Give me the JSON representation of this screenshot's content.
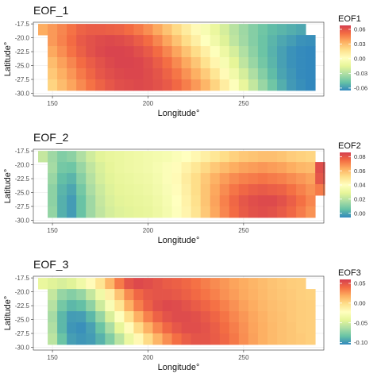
{
  "chart_data": [
    {
      "type": "heatmap",
      "title": "EOF_1",
      "xlabel": "Longitude°",
      "ylabel": "Latitude°",
      "xlim": [
        140,
        292
      ],
      "ylim": [
        -30.5,
        -17.2
      ],
      "x_ticks": [
        150,
        200,
        250
      ],
      "y_ticks": [
        -17.5,
        -20.0,
        -22.5,
        -25.0,
        -27.5,
        -30.0
      ],
      "grid": true,
      "legend": {
        "title": "EOF1",
        "position": "right",
        "range": [
          -0.065,
          0.068
        ],
        "ticks": [
          0.06,
          0.03,
          0.0,
          -0.03,
          -0.06
        ],
        "tick_labels": [
          "0.06",
          "0.03",
          "0.00",
          "-0.03",
          "-0.06"
        ],
        "colors": [
          "#d53e4f",
          "#f46d43",
          "#fdae61",
          "#fee08b",
          "#ffffbf",
          "#e6f598",
          "#abdda4",
          "#66c2a5",
          "#3288bd"
        ]
      },
      "grid_x": [
        145,
        150,
        155,
        160,
        165,
        170,
        175,
        180,
        185,
        190,
        195,
        200,
        205,
        210,
        215,
        220,
        225,
        230,
        235,
        240,
        245,
        250,
        255,
        260,
        265,
        270,
        275,
        280,
        285,
        290
      ],
      "grid_y": [
        -18.5,
        -20.5,
        -22.5,
        -24.5,
        -26.5,
        -28.5
      ],
      "rows": [
        [
          0.035,
          0.04,
          0.045,
          0.05,
          0.055,
          0.057,
          0.057,
          0.056,
          0.055,
          0.052,
          0.048,
          0.043,
          0.036,
          0.028,
          0.02,
          0.012,
          0.004,
          -0.004,
          -0.012,
          -0.02,
          -0.028,
          -0.035,
          -0.041,
          -0.046,
          -0.05,
          -0.052,
          -0.054,
          -0.056,
          null,
          null
        ],
        [
          null,
          0.04,
          0.046,
          0.052,
          0.058,
          0.061,
          0.063,
          0.064,
          0.063,
          0.061,
          0.057,
          0.052,
          0.045,
          0.037,
          0.028,
          0.019,
          0.01,
          0.001,
          -0.008,
          -0.017,
          -0.026,
          -0.034,
          -0.041,
          -0.047,
          -0.052,
          -0.056,
          -0.059,
          -0.062,
          -0.063,
          null
        ],
        [
          null,
          0.036,
          0.043,
          0.05,
          0.056,
          0.061,
          0.064,
          0.066,
          0.066,
          0.065,
          0.062,
          0.058,
          0.052,
          0.045,
          0.037,
          0.028,
          0.019,
          0.01,
          0.0,
          -0.01,
          -0.02,
          -0.03,
          -0.039,
          -0.047,
          -0.053,
          -0.058,
          -0.062,
          -0.064,
          -0.065,
          null
        ],
        [
          null,
          0.03,
          0.038,
          0.045,
          0.052,
          0.057,
          0.061,
          0.064,
          0.066,
          0.066,
          0.065,
          0.062,
          0.057,
          0.051,
          0.044,
          0.036,
          0.027,
          0.017,
          0.007,
          -0.004,
          -0.015,
          -0.026,
          -0.036,
          -0.045,
          -0.052,
          -0.058,
          -0.062,
          -0.064,
          -0.065,
          null
        ],
        [
          null,
          0.026,
          0.034,
          0.041,
          0.048,
          0.054,
          0.059,
          0.062,
          0.064,
          0.065,
          0.065,
          0.063,
          0.06,
          0.055,
          0.049,
          0.042,
          0.034,
          0.025,
          0.015,
          0.004,
          -0.008,
          -0.02,
          -0.031,
          -0.041,
          -0.05,
          -0.057,
          -0.061,
          -0.064,
          -0.065,
          null
        ],
        [
          null,
          0.022,
          0.03,
          0.037,
          0.044,
          0.05,
          0.055,
          0.059,
          0.062,
          0.063,
          0.064,
          0.063,
          0.061,
          0.058,
          0.053,
          0.047,
          0.04,
          0.032,
          0.022,
          0.011,
          0.0,
          -0.013,
          -0.025,
          -0.036,
          -0.046,
          -0.054,
          -0.06,
          -0.063,
          -0.065,
          null
        ]
      ]
    },
    {
      "type": "heatmap",
      "title": "EOF_2",
      "xlabel": "Longitude°",
      "ylabel": "Latitude°",
      "xlim": [
        140,
        292
      ],
      "ylim": [
        -30.5,
        -17.2
      ],
      "x_ticks": [
        150,
        200,
        250
      ],
      "y_ticks": [
        -17.5,
        -20.0,
        -22.5,
        -25.0,
        -27.5,
        -30.0
      ],
      "grid": true,
      "legend": {
        "title": "EOF2",
        "position": "right",
        "range": [
          -0.006,
          0.086
        ],
        "ticks": [
          0.08,
          0.06,
          0.04,
          0.02,
          0.0
        ],
        "tick_labels": [
          "0.08",
          "0.06",
          "0.04",
          "0.02",
          "0.00"
        ],
        "colors": [
          "#d53e4f",
          "#f46d43",
          "#fdae61",
          "#fee08b",
          "#ffffbf",
          "#e6f598",
          "#abdda4",
          "#66c2a5",
          "#3288bd"
        ]
      },
      "grid_x": [
        145,
        150,
        155,
        160,
        165,
        170,
        175,
        180,
        185,
        190,
        195,
        200,
        205,
        210,
        215,
        220,
        225,
        230,
        235,
        240,
        245,
        250,
        255,
        260,
        265,
        270,
        275,
        280,
        285,
        290
      ],
      "grid_y": [
        -18.5,
        -20.5,
        -22.5,
        -24.5,
        -26.5,
        -28.5
      ],
      "rows": [
        [
          0.022,
          0.015,
          0.01,
          0.012,
          0.018,
          0.024,
          0.028,
          0.03,
          0.031,
          0.032,
          0.033,
          0.034,
          0.035,
          0.036,
          0.038,
          0.04,
          0.043,
          0.046,
          0.049,
          0.052,
          0.055,
          0.057,
          0.058,
          0.059,
          0.059,
          0.058,
          0.056,
          0.055,
          0.054,
          null
        ],
        [
          null,
          0.016,
          0.008,
          0.007,
          0.014,
          0.021,
          0.026,
          0.029,
          0.031,
          0.032,
          0.033,
          0.034,
          0.036,
          0.038,
          0.041,
          0.045,
          0.049,
          0.053,
          0.057,
          0.06,
          0.063,
          0.065,
          0.066,
          0.067,
          0.066,
          0.065,
          0.063,
          0.061,
          0.06,
          0.082
        ],
        [
          null,
          0.014,
          0.005,
          0.003,
          0.011,
          0.019,
          0.025,
          0.028,
          0.03,
          0.031,
          0.032,
          0.033,
          0.035,
          0.038,
          0.042,
          0.047,
          0.052,
          0.057,
          0.062,
          0.066,
          0.069,
          0.071,
          0.072,
          0.073,
          0.072,
          0.071,
          0.069,
          0.067,
          0.065,
          0.08
        ],
        [
          null,
          0.012,
          0.003,
          0.0,
          0.008,
          0.017,
          0.023,
          0.027,
          0.029,
          0.03,
          0.031,
          0.032,
          0.034,
          0.037,
          0.041,
          0.046,
          0.052,
          0.058,
          0.064,
          0.069,
          0.073,
          0.076,
          0.078,
          0.079,
          0.078,
          0.077,
          0.074,
          0.071,
          0.068,
          0.072
        ],
        [
          null,
          0.012,
          0.002,
          -0.002,
          0.006,
          0.015,
          0.022,
          0.026,
          0.028,
          0.029,
          0.03,
          0.031,
          0.033,
          0.036,
          0.04,
          0.045,
          0.051,
          0.058,
          0.065,
          0.071,
          0.076,
          0.08,
          0.082,
          0.083,
          0.083,
          0.081,
          0.078,
          0.074,
          0.07,
          null
        ],
        [
          null,
          0.013,
          0.002,
          -0.002,
          0.006,
          0.015,
          0.021,
          0.025,
          0.027,
          0.028,
          0.029,
          0.03,
          0.032,
          0.035,
          0.039,
          0.044,
          0.05,
          0.057,
          0.064,
          0.07,
          0.075,
          0.079,
          0.081,
          0.082,
          0.081,
          0.079,
          0.076,
          0.072,
          0.068,
          null
        ]
      ]
    },
    {
      "type": "heatmap",
      "title": "EOF_3",
      "xlabel": "Longitude°",
      "ylabel": "Latitude°",
      "xlim": [
        140,
        292
      ],
      "ylim": [
        -30.5,
        -17.2
      ],
      "x_ticks": [
        150,
        200,
        250
      ],
      "y_ticks": [
        -17.5,
        -20.0,
        -22.5,
        -25.0,
        -27.5,
        -30.0
      ],
      "grid": true,
      "legend": {
        "title": "EOF3",
        "position": "right",
        "range": [
          -0.105,
          0.06
        ],
        "ticks": [
          0.05,
          0.0,
          -0.05,
          -0.1
        ],
        "tick_labels": [
          "0.05",
          "0.00",
          "-0.05",
          "-0.10"
        ],
        "colors": [
          "#d53e4f",
          "#f46d43",
          "#fdae61",
          "#fee08b",
          "#ffffbf",
          "#e6f598",
          "#abdda4",
          "#66c2a5",
          "#3288bd"
        ]
      },
      "grid_x": [
        145,
        150,
        155,
        160,
        165,
        170,
        175,
        180,
        185,
        190,
        195,
        200,
        205,
        210,
        215,
        220,
        225,
        230,
        235,
        240,
        245,
        250,
        255,
        260,
        265,
        270,
        275,
        280,
        285,
        290
      ],
      "grid_y": [
        -18.5,
        -20.5,
        -22.5,
        -24.5,
        -26.5,
        -28.5
      ],
      "rows": [
        [
          -0.04,
          -0.045,
          -0.048,
          -0.045,
          -0.035,
          -0.02,
          -0.005,
          0.015,
          0.035,
          0.05,
          0.055,
          0.053,
          0.05,
          0.047,
          0.045,
          0.042,
          0.038,
          0.034,
          0.03,
          0.026,
          0.022,
          0.019,
          0.016,
          0.013,
          0.01,
          0.008,
          0.006,
          0.005,
          null,
          null
        ],
        [
          null,
          -0.055,
          -0.07,
          -0.075,
          -0.07,
          -0.055,
          -0.035,
          -0.012,
          0.01,
          0.03,
          0.042,
          0.048,
          0.05,
          0.05,
          0.048,
          0.045,
          0.041,
          0.037,
          0.033,
          0.028,
          0.024,
          0.02,
          0.017,
          0.014,
          0.011,
          0.009,
          0.007,
          0.005,
          0.004,
          null
        ],
        [
          null,
          -0.06,
          -0.08,
          -0.088,
          -0.085,
          -0.072,
          -0.052,
          -0.028,
          -0.005,
          0.018,
          0.034,
          0.045,
          0.052,
          0.055,
          0.054,
          0.051,
          0.047,
          0.043,
          0.038,
          0.033,
          0.028,
          0.023,
          0.019,
          0.015,
          0.012,
          0.01,
          0.008,
          0.006,
          0.005,
          null
        ],
        [
          null,
          -0.065,
          -0.088,
          -0.098,
          -0.097,
          -0.088,
          -0.07,
          -0.048,
          -0.024,
          -0.002,
          0.018,
          0.033,
          0.044,
          0.051,
          0.054,
          0.054,
          0.052,
          0.048,
          0.043,
          0.037,
          0.031,
          0.026,
          0.021,
          0.017,
          0.013,
          0.011,
          0.008,
          0.006,
          0.005,
          null
        ],
        [
          null,
          -0.062,
          -0.088,
          -0.1,
          -0.102,
          -0.096,
          -0.083,
          -0.064,
          -0.042,
          -0.02,
          0.0,
          0.017,
          0.031,
          0.042,
          0.049,
          0.053,
          0.053,
          0.051,
          0.046,
          0.04,
          0.034,
          0.028,
          0.022,
          0.018,
          0.014,
          0.011,
          0.009,
          0.006,
          0.005,
          null
        ],
        [
          null,
          -0.058,
          -0.083,
          -0.097,
          -0.1,
          -0.098,
          -0.09,
          -0.076,
          -0.058,
          -0.038,
          -0.018,
          0.0,
          0.016,
          0.029,
          0.039,
          0.046,
          0.05,
          0.05,
          0.047,
          0.042,
          0.036,
          0.029,
          0.023,
          0.018,
          0.014,
          0.011,
          0.009,
          0.007,
          0.005,
          null
        ]
      ]
    }
  ]
}
